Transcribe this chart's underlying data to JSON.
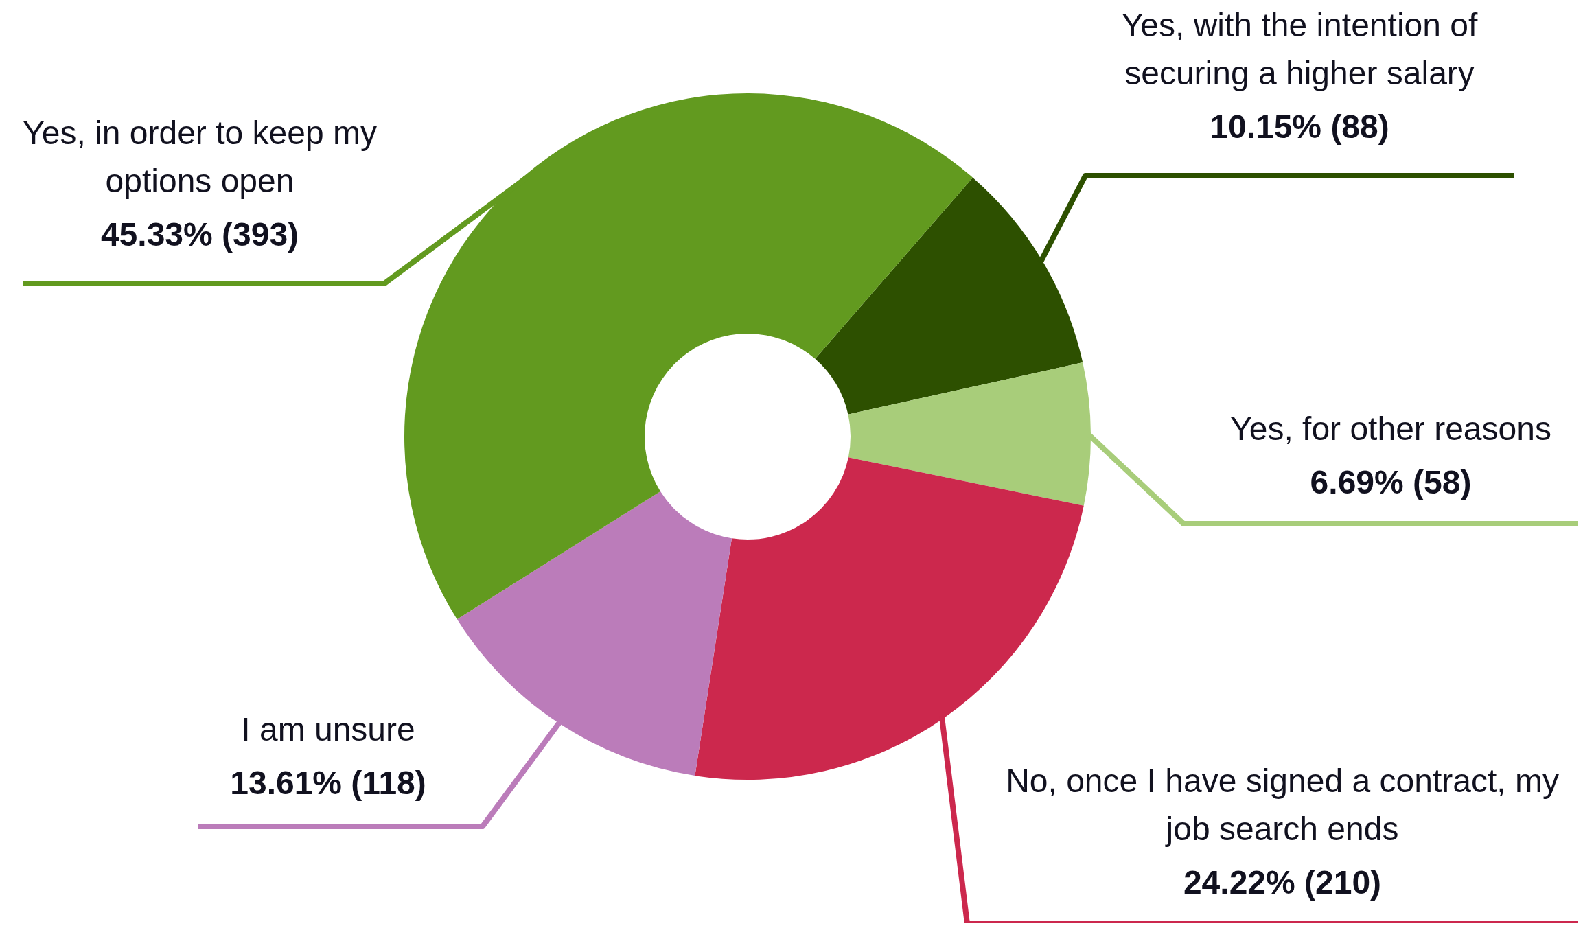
{
  "chart_data": {
    "type": "donut",
    "categories": [
      "Yes, with the intention of securing a higher salary",
      "Yes, for other reasons",
      "No, once I have signed a contract, my job search ends",
      "I am unsure",
      "Yes, in order to keep my options open"
    ],
    "values": [
      88,
      58,
      210,
      118,
      393
    ],
    "colors": [
      "#2d5000",
      "#a8cd7a",
      "#cc284d",
      "#bb7cba",
      "#629a1f"
    ],
    "value_labels": [
      "10.15% (88)",
      "6.69% (58)",
      "24.22% (210)",
      "13.61% (118)",
      "45.33% (393)"
    ],
    "legend": false
  }
}
